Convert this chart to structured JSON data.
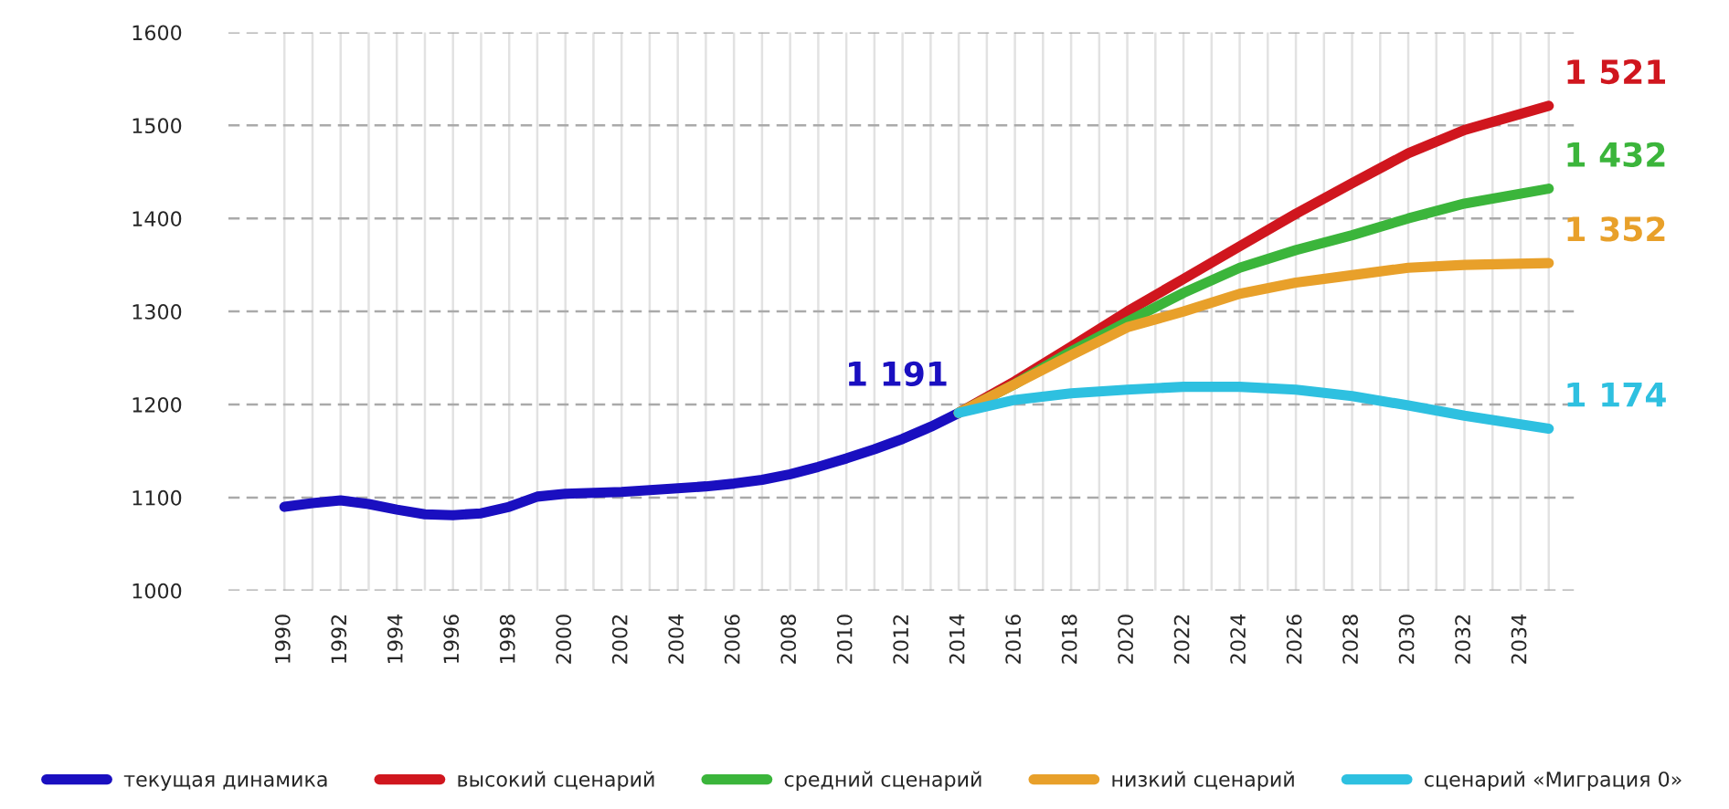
{
  "chart_data": {
    "type": "line",
    "xlim": [
      1988,
      2036
    ],
    "ylim": [
      1000,
      1600
    ],
    "yticks": [
      1000,
      1100,
      1200,
      1300,
      1400,
      1500,
      1600
    ],
    "xticks": [
      1990,
      {
        "value": 1991,
        "label": null
      },
      1992,
      {
        "value": 1993,
        "label": null
      },
      1994,
      {
        "value": 1995,
        "label": null
      },
      1996,
      {
        "value": 1997,
        "label": null
      },
      1998,
      {
        "value": 1999,
        "label": null
      },
      2000,
      {
        "value": 2001,
        "label": null
      },
      2002,
      {
        "value": 2003,
        "label": null
      },
      2004,
      {
        "value": 2005,
        "label": null
      },
      2006,
      {
        "value": 2007,
        "label": null
      },
      2008,
      {
        "value": 2009,
        "label": null
      },
      2010,
      {
        "value": 2011,
        "label": null
      },
      2012,
      {
        "value": 2013,
        "label": null
      },
      2014,
      {
        "value": 2015,
        "label": null
      },
      2016,
      {
        "value": 2017,
        "label": null
      },
      2018,
      {
        "value": 2019,
        "label": null
      },
      2020,
      {
        "value": 2021,
        "label": null
      },
      2022,
      {
        "value": 2023,
        "label": null
      },
      2024,
      {
        "value": 2025,
        "label": null
      },
      2026,
      {
        "value": 2027,
        "label": null
      },
      2028,
      {
        "value": 2029,
        "label": null
      },
      2030,
      {
        "value": 2031,
        "label": null
      },
      2032,
      {
        "value": 2033,
        "label": null
      },
      2034,
      {
        "value": 2035,
        "label": null
      }
    ],
    "grid": true,
    "legend": "bottom",
    "marker": "none",
    "line_style": "solid",
    "series": [
      {
        "name": "текущая динамика",
        "color": "#1a0fc0",
        "x": [
          1990,
          1991,
          1992,
          1993,
          1994,
          1995,
          1996,
          1997,
          1998,
          1999,
          2000,
          2001,
          2002,
          2003,
          2004,
          2005,
          2006,
          2007,
          2008,
          2009,
          2010,
          2011,
          2012,
          2013,
          2014
        ],
        "values": [
          1090,
          1094,
          1097,
          1093,
          1087,
          1082,
          1081,
          1083,
          1090,
          1101,
          1104,
          1105,
          1106,
          1108,
          1110,
          1112,
          1115,
          1119,
          1125,
          1133,
          1142,
          1152,
          1163,
          1176,
          1191
        ],
        "value_labels": [
          null,
          null,
          null,
          null,
          null,
          null,
          null,
          null,
          null,
          null,
          null,
          null,
          null,
          null,
          null,
          null,
          null,
          null,
          null,
          null,
          null,
          null,
          null,
          null,
          "1 191"
        ]
      },
      {
        "name": "высокий сценарий",
        "color": "#d0161e",
        "x": [
          2014,
          2016,
          2018,
          2020,
          2022,
          2024,
          2026,
          2028,
          2030,
          2032,
          2035
        ],
        "values": [
          1191,
          1225,
          1262,
          1300,
          1335,
          1370,
          1405,
          1438,
          1470,
          1495,
          1521
        ],
        "value_labels": [
          null,
          null,
          null,
          null,
          null,
          null,
          null,
          null,
          null,
          null,
          "1 521"
        ]
      },
      {
        "name": "средний сценарий",
        "color": "#3bb53b",
        "x": [
          2014,
          2016,
          2018,
          2020,
          2022,
          2024,
          2026,
          2028,
          2030,
          2032,
          2035
        ],
        "values": [
          1191,
          1222,
          1257,
          1289,
          1320,
          1347,
          1366,
          1382,
          1400,
          1416,
          1432
        ],
        "value_labels": [
          null,
          null,
          null,
          null,
          null,
          null,
          null,
          null,
          null,
          null,
          "1 432"
        ]
      },
      {
        "name": "низкий сценарий",
        "color": "#e8a02a",
        "x": [
          2014,
          2016,
          2018,
          2020,
          2022,
          2024,
          2026,
          2028,
          2030,
          2032,
          2035
        ],
        "values": [
          1191,
          1222,
          1253,
          1283,
          1300,
          1319,
          1331,
          1339,
          1347,
          1350,
          1352
        ],
        "value_labels": [
          null,
          null,
          null,
          null,
          null,
          null,
          null,
          null,
          null,
          null,
          "1 352"
        ]
      },
      {
        "name": "сценарий «Миграция 0»",
        "color": "#2ec0e0",
        "x": [
          2014,
          2016,
          2018,
          2020,
          2022,
          2024,
          2026,
          2028,
          2030,
          2032,
          2035
        ],
        "values": [
          1191,
          1205,
          1212,
          1216,
          1219,
          1219,
          1216,
          1209,
          1199,
          1188,
          1174
        ],
        "value_labels": [
          null,
          null,
          null,
          null,
          null,
          null,
          null,
          null,
          null,
          null,
          "1 174"
        ]
      }
    ]
  }
}
